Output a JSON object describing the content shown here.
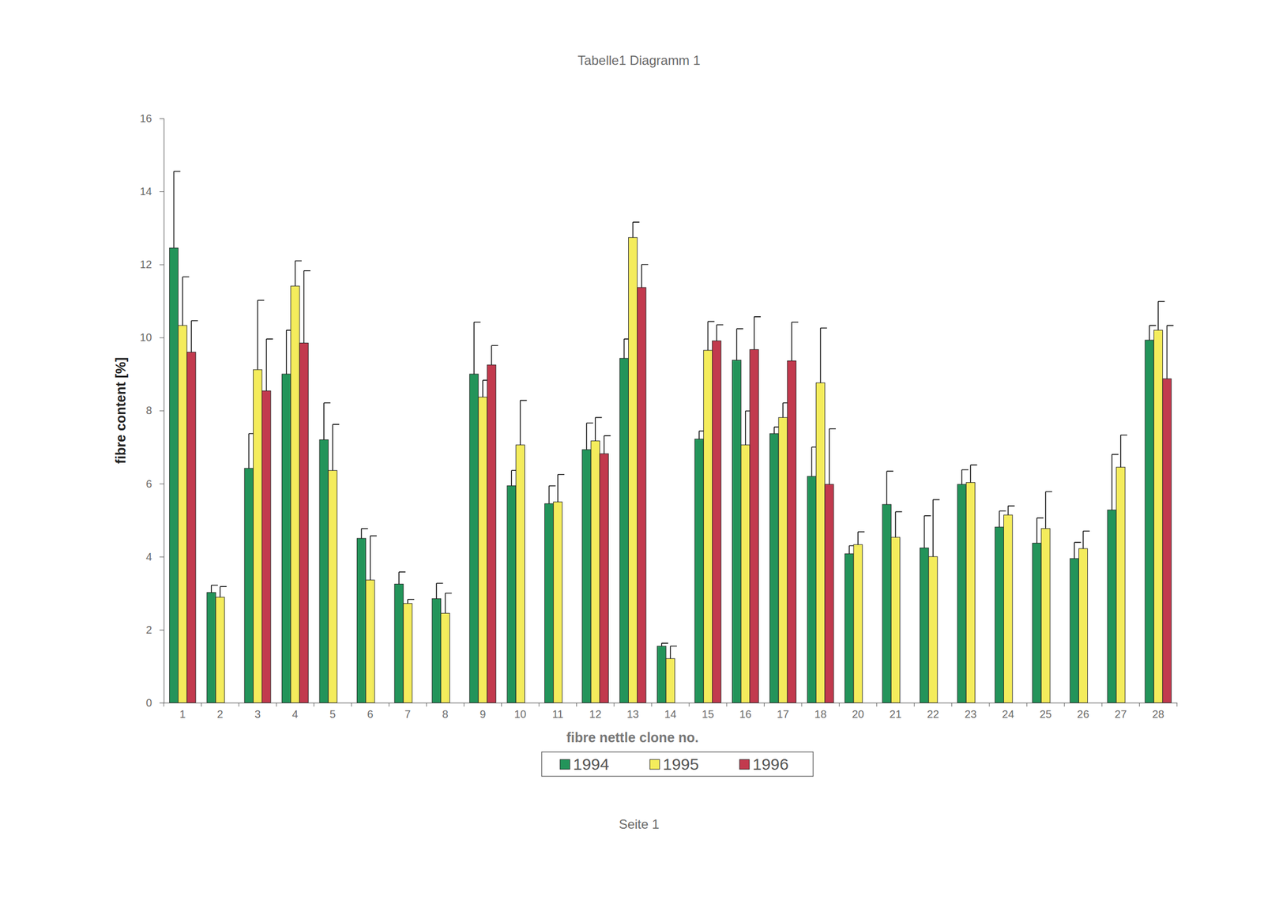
{
  "chart_data": {
    "type": "bar",
    "title": "Tabelle1 Diagramm 1",
    "x_label": "fibre nettle clone no.",
    "y_label": "fibre content [%]",
    "annotations": [
      "Seite 1"
    ],
    "categories": [
      "1",
      "2",
      "3",
      "4",
      "5",
      "6",
      "7",
      "8",
      "9",
      "10",
      "11",
      "12",
      "13",
      "14",
      "15",
      "16",
      "17",
      "18",
      "20",
      "21",
      "22",
      "23",
      "24",
      "25",
      "26",
      "27",
      "28"
    ],
    "series": [
      {
        "name": "1994",
        "color": "#23945a",
        "values": [
          12.45,
          3.02,
          6.42,
          9.0,
          7.2,
          4.5,
          3.25,
          2.85,
          9.0,
          5.94,
          5.45,
          6.93,
          9.43,
          1.55,
          7.22,
          9.38,
          7.37,
          6.2,
          4.08,
          5.43,
          4.24,
          5.98,
          4.81,
          4.37,
          3.95,
          5.28,
          9.93
        ],
        "errors": [
          2.1,
          0.2,
          0.95,
          1.2,
          1.01,
          0.27,
          0.33,
          0.42,
          1.42,
          0.42,
          0.49,
          0.73,
          0.53,
          0.08,
          0.22,
          0.86,
          0.18,
          0.8,
          0.22,
          0.91,
          0.88,
          0.4,
          0.44,
          0.69,
          0.44,
          1.52,
          0.4
        ]
      },
      {
        "name": "1995",
        "color": "#f4ec5c",
        "values": [
          10.33,
          2.89,
          9.12,
          11.41,
          6.36,
          3.36,
          2.72,
          2.45,
          8.37,
          7.06,
          5.5,
          7.17,
          12.74,
          1.21,
          9.65,
          7.06,
          7.81,
          8.76,
          4.33,
          4.53,
          4.0,
          6.03,
          5.14,
          4.77,
          4.22,
          6.45,
          10.2
        ],
        "errors": [
          1.33,
          0.29,
          1.9,
          0.69,
          1.26,
          1.21,
          0.11,
          0.55,
          0.46,
          1.22,
          0.75,
          0.64,
          0.42,
          0.34,
          0.79,
          0.93,
          0.4,
          1.5,
          0.35,
          0.7,
          1.56,
          0.48,
          0.25,
          1.01,
          0.48,
          0.88,
          0.79
        ]
      },
      {
        "name": "1996",
        "color": "#c23a4e",
        "values": [
          9.6,
          null,
          8.54,
          9.85,
          null,
          null,
          null,
          null,
          9.25,
          null,
          null,
          6.82,
          11.37,
          null,
          9.91,
          9.67,
          9.36,
          5.98,
          null,
          null,
          null,
          null,
          null,
          null,
          null,
          null,
          8.87
        ],
        "errors": [
          0.86,
          null,
          1.42,
          1.98,
          null,
          null,
          null,
          null,
          0.53,
          null,
          null,
          0.49,
          0.63,
          null,
          0.44,
          0.9,
          1.06,
          1.52,
          null,
          null,
          null,
          null,
          null,
          null,
          null,
          null,
          1.46
        ]
      }
    ],
    "ylim": [
      0,
      16
    ],
    "yticks": [
      0,
      2,
      4,
      6,
      8,
      10,
      12,
      14,
      16
    ],
    "grid": false,
    "legend": "bottom"
  }
}
